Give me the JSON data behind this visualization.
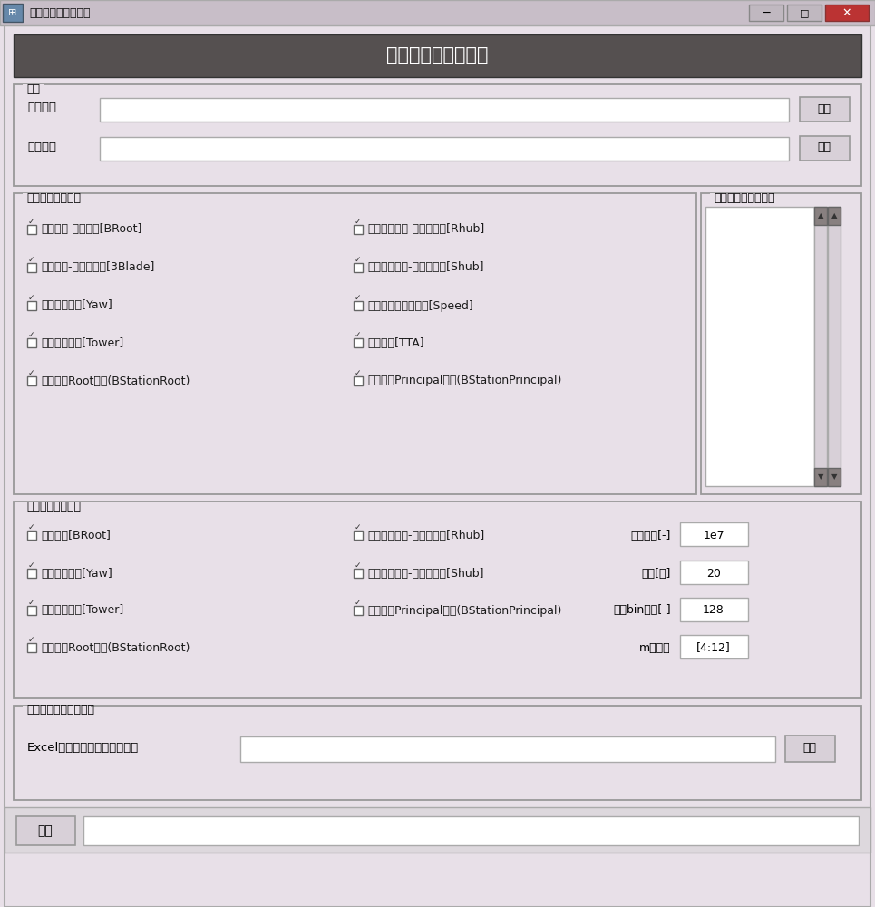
{
  "title_bar": "载荷后处理文件生成",
  "header_title": "载荷后处理文件生成",
  "bg_color": "#e8e0e8",
  "header_bg": "#555050",
  "titlebar_bg": "#c8c0c8",
  "section1_title": "目录",
  "field1_label": "时序目录",
  "field2_label": "输出目录",
  "browse_btn": "浏览",
  "section2_title": "极限载荷提取类别",
  "section3_title": "叶片与塔架截面高度",
  "extreme_checks_left": [
    "叶根载荷-叶片合并[BRoot]",
    "叶根载荷-叶片不合并[3Blade]",
    "偏航轴承载荷[Yaw]",
    "塔架截面载荷[Tower]",
    "叶片截面Root载荷(BStationRoot)"
  ],
  "extreme_checks_right": [
    "轮毂中心载荷-旋转坐标系[Rhub]",
    "轮毂中心载荷-静止坐标系[Shub]",
    "风轮发电机最大转速[Speed]",
    "塔架净空[TTA]",
    "叶片截面Principal载荷(BStationPrincipal)"
  ],
  "section4_title": "疲劳载荷提取类别",
  "fatigue_checks_left": [
    "叶根载荷[BRoot]",
    "偏航轴承载荷[Yaw]",
    "塔架截面载荷[Tower]",
    "叶片截面Root载荷(BStationRoot)"
  ],
  "fatigue_checks_right": [
    "轮毂中心载荷-旋转坐标系[Rhub]",
    "轮毂中心载荷-静止坐标系[Shub]",
    "叶片截面Principal载荷(BStationPrincipal)"
  ],
  "param_labels": [
    "循环次数[-]",
    "寿命[年]",
    "雨流bin数目[-]",
    "m值范围"
  ],
  "param_values": [
    "1e7",
    "20",
    "128",
    "[4:12]"
  ],
  "section5_title": "工况安全系数与小时数",
  "excel_label": "Excel导入安全系数与小时数：",
  "generate_btn": "生成"
}
